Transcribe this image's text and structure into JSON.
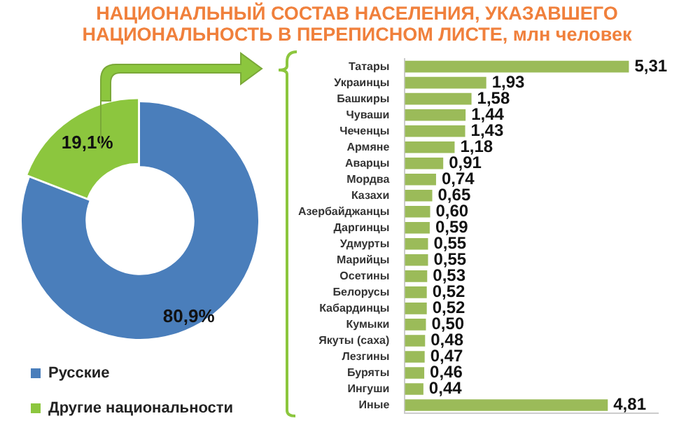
{
  "chart_data": [
    {
      "type": "donut",
      "title": "НАЦИОНАЛЬНЫЙ СОСТАВ НАСЕЛЕНИЯ, УКАЗАВШЕГО НАЦИОНАЛЬНОСТЬ В ПЕРЕПИСНОМ ЛИСТЕ, млн человек",
      "categories": [
        "Русские",
        "Другие национальности"
      ],
      "values": [
        80.9,
        19.1
      ],
      "value_labels": [
        "80,9%",
        "19,1%"
      ],
      "colors": [
        "#4a7ebb",
        "#8cc63e"
      ],
      "legend": "bottom left"
    },
    {
      "type": "bar",
      "orientation": "horizontal",
      "categories": [
        "Татары",
        "Украинцы",
        "Башкиры",
        "Чуваши",
        "Чеченцы",
        "Армяне",
        "Аварцы",
        "Мордва",
        "Казахи",
        "Азербайджанцы",
        "Даргинцы",
        "Удмурты",
        "Марийцы",
        "Осетины",
        "Белорусы",
        "Кабардинцы",
        "Кумыки",
        "Якуты (саха)",
        "Лезгины",
        "Буряты",
        "Ингуши",
        "Иные"
      ],
      "values": [
        5.31,
        1.93,
        1.58,
        1.44,
        1.43,
        1.18,
        0.91,
        0.74,
        0.65,
        0.6,
        0.59,
        0.55,
        0.55,
        0.53,
        0.52,
        0.52,
        0.5,
        0.48,
        0.47,
        0.46,
        0.44,
        4.81
      ],
      "value_labels": [
        "5,31",
        "1,93",
        "1,58",
        "1,44",
        "1,43",
        "1,18",
        "0,91",
        "0,74",
        "0,65",
        "0,60",
        "0,59",
        "0,55",
        "0,55",
        "0,53",
        "0,52",
        "0,52",
        "0,50",
        "0,48",
        "0,47",
        "0,46",
        "0,44",
        "4,81"
      ],
      "color": "#9bbb59",
      "legend": false,
      "grid": false,
      "tick_labels": "y"
    }
  ]
}
